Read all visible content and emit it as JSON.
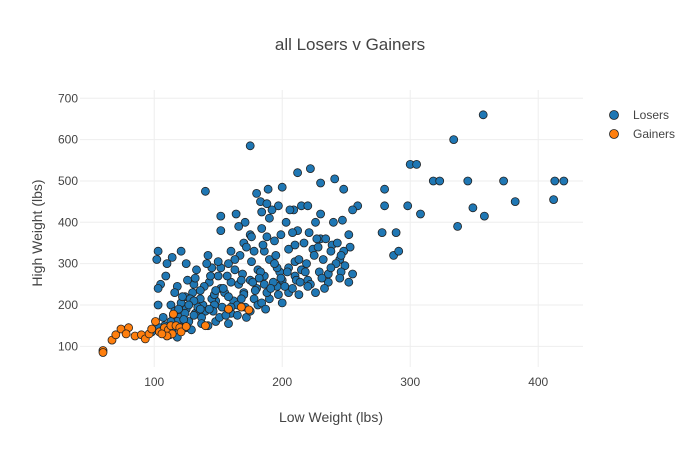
{
  "chart_data": {
    "type": "scatter",
    "title": "all Losers v Gainers",
    "xlabel": "Low Weight (lbs)",
    "ylabel": "High Weight (lbs)",
    "xlim": [
      42,
      435
    ],
    "ylim": [
      50,
      720
    ],
    "xticks": [
      100,
      200,
      300,
      400
    ],
    "yticks": [
      100,
      200,
      300,
      400,
      500,
      600,
      700
    ],
    "grid": true,
    "legend_position": "top-right",
    "series": [
      {
        "name": "Losers",
        "color": "#1f77b4",
        "points": [
          [
            357,
            660
          ],
          [
            175,
            585
          ],
          [
            334,
            600
          ],
          [
            300,
            540
          ],
          [
            305,
            540
          ],
          [
            318,
            500
          ],
          [
            345,
            500
          ],
          [
            323,
            500
          ],
          [
            373,
            500
          ],
          [
            413,
            500
          ],
          [
            420,
            500
          ],
          [
            412,
            455
          ],
          [
            382,
            450
          ],
          [
            349,
            435
          ],
          [
            358,
            415
          ],
          [
            337,
            390
          ],
          [
            308,
            420
          ],
          [
            298,
            440
          ],
          [
            280,
            480
          ],
          [
            280,
            440
          ],
          [
            289,
            375
          ],
          [
            278,
            375
          ],
          [
            287,
            320
          ],
          [
            291,
            330
          ],
          [
            259,
            440
          ],
          [
            255,
            430
          ],
          [
            241,
            505
          ],
          [
            248,
            480
          ],
          [
            230,
            495
          ],
          [
            222,
            530
          ],
          [
            212,
            520
          ],
          [
            200,
            485
          ],
          [
            189,
            480
          ],
          [
            183,
            450
          ],
          [
            188,
            445
          ],
          [
            184,
            425
          ],
          [
            180,
            470
          ],
          [
            197,
            440
          ],
          [
            209,
            430
          ],
          [
            215,
            440
          ],
          [
            220,
            440
          ],
          [
            230,
            420
          ],
          [
            240,
            400
          ],
          [
            247,
            405
          ],
          [
            252,
            370
          ],
          [
            253,
            340
          ],
          [
            248,
            330
          ],
          [
            245,
            310
          ],
          [
            255,
            275
          ],
          [
            232,
            310
          ],
          [
            226,
            400
          ],
          [
            206,
            430
          ],
          [
            192,
            430
          ],
          [
            164,
            420
          ],
          [
            152,
            415
          ],
          [
            140,
            475
          ],
          [
            103,
            330
          ],
          [
            102,
            310
          ],
          [
            105,
            250
          ],
          [
            103,
            240
          ],
          [
            114,
            315
          ],
          [
            110,
            300
          ],
          [
            121,
            330
          ],
          [
            125,
            300
          ],
          [
            118,
            245
          ],
          [
            113,
            200
          ],
          [
            124,
            220
          ],
          [
            103,
            200
          ],
          [
            107,
            170
          ],
          [
            115,
            175
          ],
          [
            109,
            270
          ],
          [
            131,
            250
          ],
          [
            171,
            400
          ],
          [
            175,
            370
          ],
          [
            170,
            350
          ],
          [
            142,
            320
          ],
          [
            145,
            290
          ],
          [
            152,
            240
          ],
          [
            148,
            210
          ],
          [
            160,
            180
          ],
          [
            165,
            175
          ],
          [
            178,
            215
          ],
          [
            196,
            245
          ],
          [
            213,
            225
          ],
          [
            226,
            230
          ],
          [
            236,
            275
          ],
          [
            220,
            260
          ],
          [
            210,
            305
          ],
          [
            190,
            310
          ],
          [
            186,
            250
          ],
          [
            169,
            275
          ],
          [
            150,
            270
          ],
          [
            130,
            230
          ],
          [
            125,
            190
          ],
          [
            132,
            180
          ],
          [
            121,
            205
          ],
          [
            145,
            215
          ],
          [
            160,
            255
          ],
          [
            181,
            285
          ],
          [
            198,
            280
          ],
          [
            205,
            335
          ],
          [
            217,
            350
          ],
          [
            230,
            360
          ],
          [
            224,
            335
          ],
          [
            184,
            385
          ],
          [
            194,
            355
          ],
          [
            203,
            400
          ],
          [
            178,
            330
          ],
          [
            158,
            300
          ],
          [
            155,
            230
          ],
          [
            170,
            230
          ],
          [
            190,
            215
          ],
          [
            162,
            210
          ],
          [
            138,
            200
          ],
          [
            140,
            185
          ],
          [
            120,
            170
          ],
          [
            108,
            150
          ],
          [
            104,
            145
          ],
          [
            98,
            135
          ],
          [
            112,
            128
          ],
          [
            118,
            122
          ],
          [
            127,
            160
          ],
          [
            137,
            170
          ],
          [
            148,
            160
          ],
          [
            158,
            155
          ],
          [
            165,
            200
          ],
          [
            181,
            200
          ],
          [
            210,
            270
          ],
          [
            200,
            260
          ],
          [
            186,
            330
          ],
          [
            176,
            305
          ],
          [
            167,
            320
          ],
          [
            143,
            255
          ],
          [
            136,
            215
          ],
          [
            132,
            265
          ],
          [
            128,
            215
          ],
          [
            116,
            185
          ],
          [
            125,
            145
          ],
          [
            142,
            150
          ],
          [
            172,
            170
          ],
          [
            180,
            240
          ],
          [
            196,
            290
          ],
          [
            215,
            285
          ],
          [
            225,
            320
          ],
          [
            239,
            345
          ],
          [
            249,
            295
          ],
          [
            219,
            300
          ],
          [
            205,
            230
          ],
          [
            186,
            270
          ],
          [
            175,
            260
          ],
          [
            163,
            285
          ],
          [
            154,
            240
          ],
          [
            147,
            200
          ],
          [
            134,
            195
          ],
          [
            122,
            220
          ],
          [
            118,
            160
          ],
          [
            129,
            140
          ],
          [
            151,
            170
          ],
          [
            160,
            195
          ],
          [
            170,
            225
          ],
          [
            183,
            280
          ],
          [
            194,
            300
          ],
          [
            210,
            345
          ],
          [
            221,
            375
          ],
          [
            234,
            360
          ],
          [
            242,
            300
          ],
          [
            246,
            280
          ],
          [
            236,
            255
          ],
          [
            222,
            250
          ],
          [
            211,
            260
          ],
          [
            199,
            265
          ],
          [
            188,
            230
          ],
          [
            177,
            255
          ],
          [
            166,
            250
          ],
          [
            157,
            270
          ],
          [
            147,
            225
          ],
          [
            139,
            245
          ],
          [
            131,
            210
          ],
          [
            124,
            180
          ],
          [
            113,
            160
          ],
          [
            107,
            140
          ],
          [
            114,
            135
          ],
          [
            121,
            145
          ],
          [
            137,
            155
          ],
          [
            153,
            195
          ],
          [
            168,
            215
          ],
          [
            179,
            235
          ],
          [
            193,
            255
          ],
          [
            205,
            290
          ],
          [
            213,
            310
          ],
          [
            228,
            340
          ],
          [
            238,
            330
          ],
          [
            246,
            320
          ],
          [
            218,
            280
          ],
          [
            204,
            280
          ],
          [
            195,
            320
          ],
          [
            185,
            345
          ],
          [
            172,
            340
          ],
          [
            163,
            310
          ],
          [
            152,
            290
          ],
          [
            144,
            270
          ],
          [
            136,
            235
          ],
          [
            127,
            200
          ],
          [
            119,
            190
          ],
          [
            131,
            175
          ],
          [
            146,
            185
          ],
          [
            158,
            220
          ],
          [
            168,
            260
          ],
          [
            182,
            265
          ],
          [
            191,
            240
          ],
          [
            202,
            245
          ],
          [
            214,
            255
          ],
          [
            229,
            280
          ],
          [
            238,
            290
          ],
          [
            188,
            365
          ],
          [
            199,
            370
          ],
          [
            212,
            380
          ],
          [
            227,
            360
          ],
          [
            243,
            350
          ],
          [
            160,
            330
          ],
          [
            150,
            305
          ],
          [
            141,
            300
          ],
          [
            133,
            285
          ],
          [
            126,
            260
          ],
          [
            116,
            230
          ],
          [
            143,
            190
          ],
          [
            156,
            175
          ],
          [
            171,
            195
          ],
          [
            184,
            205
          ],
          [
            197,
            225
          ],
          [
            208,
            240
          ],
          [
            220,
            245
          ],
          [
            231,
            265
          ],
          [
            245,
            265
          ],
          [
            252,
            255
          ],
          [
            233,
            240
          ],
          [
            148,
            235
          ],
          [
            136,
            190
          ],
          [
            123,
            165
          ],
          [
            175,
            185
          ],
          [
            187,
            190
          ],
          [
            200,
            205
          ],
          [
            176,
            365
          ],
          [
            190,
            410
          ],
          [
            208,
            375
          ],
          [
            166,
            390
          ],
          [
            152,
            380
          ]
        ]
      },
      {
        "name": "Gainers",
        "color": "#ff7f0e",
        "points": [
          [
            60,
            90
          ],
          [
            60,
            85
          ],
          [
            67,
            115
          ],
          [
            70,
            128
          ],
          [
            74,
            142
          ],
          [
            80,
            145
          ],
          [
            78,
            130
          ],
          [
            85,
            125
          ],
          [
            90,
            128
          ],
          [
            93,
            118
          ],
          [
            96,
            130
          ],
          [
            98,
            142
          ],
          [
            101,
            160
          ],
          [
            104,
            135
          ],
          [
            108,
            145
          ],
          [
            111,
            140
          ],
          [
            113,
            150
          ],
          [
            115,
            178
          ],
          [
            117,
            150
          ],
          [
            120,
            145
          ],
          [
            121,
            135
          ],
          [
            125,
            148
          ],
          [
            114,
            130
          ],
          [
            110,
            125
          ],
          [
            106,
            130
          ],
          [
            140,
            150
          ],
          [
            158,
            190
          ],
          [
            168,
            195
          ],
          [
            174,
            188
          ]
        ]
      }
    ]
  }
}
